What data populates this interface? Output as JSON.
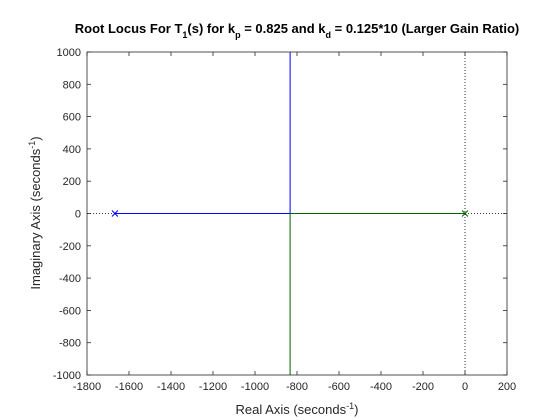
{
  "chart_data": {
    "type": "line",
    "title": {
      "segments": [
        {
          "text": "Root Locus For T",
          "shift": "none"
        },
        {
          "text": "1",
          "shift": "sub"
        },
        {
          "text": "(s) for k",
          "shift": "none"
        },
        {
          "text": "p",
          "shift": "sub"
        },
        {
          "text": " = 0.825 and k",
          "shift": "none"
        },
        {
          "text": "d",
          "shift": "sub"
        },
        {
          "text": " = 0.125*10 (Larger Gain Ratio)",
          "shift": "none"
        }
      ]
    },
    "xlabel": {
      "segments": [
        {
          "text": "Real Axis (seconds",
          "shift": "none"
        },
        {
          "text": "-1",
          "shift": "super"
        },
        {
          "text": ")",
          "shift": "none"
        }
      ]
    },
    "ylabel": {
      "segments": [
        {
          "text": "Imaginary Axis (seconds",
          "shift": "none"
        },
        {
          "text": "-1",
          "shift": "super"
        },
        {
          "text": ")",
          "shift": "none"
        }
      ]
    },
    "xlim": [
      -1800,
      200
    ],
    "ylim": [
      -1000,
      1000
    ],
    "xticks": [
      -1800,
      -1600,
      -1400,
      -1200,
      -1000,
      -800,
      -600,
      -400,
      -200,
      0,
      200
    ],
    "yticks": [
      -1000,
      -800,
      -600,
      -400,
      -200,
      0,
      200,
      400,
      600,
      800,
      1000
    ],
    "grid": false,
    "legend": "none",
    "series": [
      {
        "color": "#0000ff",
        "segments": [
          [
            [
              -1667,
              0
            ],
            [
              -833,
              0
            ]
          ],
          [
            [
              -833,
              0
            ],
            [
              -833,
              1000
            ]
          ]
        ]
      },
      {
        "color": "#006400",
        "segments": [
          [
            [
              0,
              0
            ],
            [
              -833,
              0
            ]
          ],
          [
            [
              -833,
              0
            ],
            [
              -833,
              -1000
            ]
          ]
        ]
      }
    ],
    "poles": {
      "marker": "x",
      "points": [
        [
          -1667,
          0
        ],
        [
          0,
          0
        ]
      ],
      "colors": [
        "#0000ff",
        "#006400"
      ]
    },
    "reference_lines": {
      "style": "dotted",
      "color": "#000000",
      "horizontal_y": 0,
      "vertical_x": 0
    }
  }
}
